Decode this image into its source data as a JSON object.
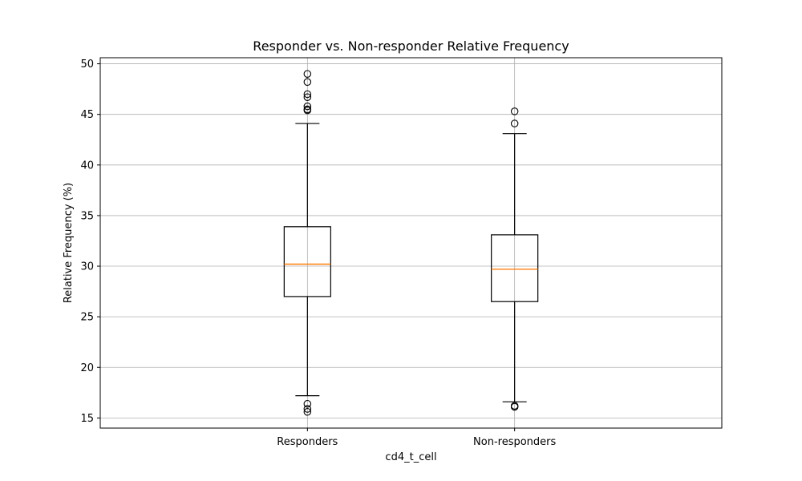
{
  "chart_data": {
    "type": "boxplot",
    "title": "Responder vs. Non-responder Relative Frequency",
    "xlabel": "cd4_t_cell",
    "ylabel": "Relative Frequency (%)",
    "ylim": [
      14.0,
      50.6
    ],
    "yticks": [
      15,
      20,
      25,
      30,
      35,
      40,
      45,
      50
    ],
    "grid": true,
    "categories": [
      "Responders",
      "Non-responders"
    ],
    "boxes": [
      {
        "label": "Responders",
        "q1": 27.0,
        "median": 30.2,
        "q3": 33.9,
        "whisker_low": 17.2,
        "whisker_high": 44.1,
        "outliers": [
          15.6,
          15.9,
          16.4,
          45.4,
          45.5,
          45.8,
          46.7,
          47.0,
          48.2,
          49.0
        ]
      },
      {
        "label": "Non-responders",
        "q1": 26.5,
        "median": 29.7,
        "q3": 33.1,
        "whisker_low": 16.6,
        "whisker_high": 43.1,
        "outliers": [
          16.1,
          16.2,
          44.1,
          45.3
        ]
      }
    ],
    "colors": {
      "box": "#000000",
      "median": "#ff7f0e",
      "grid": "#b0b0b0"
    }
  }
}
